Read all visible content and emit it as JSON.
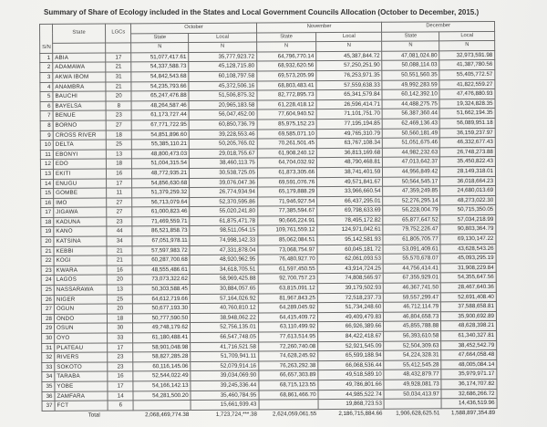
{
  "title": "Summary of Share of Ecology included in the States and Local Government Councils Allocation (October to December, 2015.)",
  "headers": {
    "sn": "S/N",
    "state": "State",
    "lgcs": "LGCs",
    "months": [
      "October",
      "November",
      "December"
    ],
    "sub": [
      "State",
      "Local"
    ],
    "currency": "N"
  },
  "rows": [
    [
      "1",
      "ABIA",
      "17",
      "51,077,417.61",
      "35,777,923.72",
      "64,796,770.14",
      "45,387,844.72",
      "47,081,024.80",
      "32,973,591.98"
    ],
    [
      "2",
      "ADAMAWA",
      "21",
      "54,337,588.73",
      "45,128,715.80",
      "68,932,620.56",
      "57,250,251.90",
      "50,088,114.03",
      "41,387,780.56"
    ],
    [
      "3",
      "AKWA IBOM",
      "31",
      "54,842,543.68",
      "60,108,797.58",
      "69,573,205.99",
      "76,253,971.35",
      "50,551,560.35",
      "55,405,772.57"
    ],
    [
      "4",
      "ANAMBRA",
      "21",
      "54,235,793.66",
      "45,372,506.16",
      "68,803,483.41",
      "57,559,638.33",
      "49,992,283.59",
      "41,822,559.27"
    ],
    [
      "5",
      "BAUCHI",
      "20",
      "65,247,476.88",
      "51,506,875.32",
      "82,772,895.73",
      "65,341,579.84",
      "60,142,392.10",
      "47,476,880.93"
    ],
    [
      "6",
      "BAYELSA",
      "8",
      "48,264,587.46",
      "20,965,183.58",
      "61,228,418.12",
      "26,596,414.71",
      "44,488,275.75",
      "19,324,828.35"
    ],
    [
      "7",
      "BENUE",
      "23",
      "61,173,727.44",
      "56,047,452.00",
      "77,604,940.52",
      "71,101,751.70",
      "56,387,360.44",
      "51,662,194.35"
    ],
    [
      "8",
      "BORNO",
      "27",
      "67,771,722.95",
      "60,850,736.79",
      "85,975,152.23",
      "77,195,194.85",
      "62,469,136.43",
      "56,089,951.18"
    ],
    [
      "9",
      "CROSS RIVER",
      "18",
      "54,851,896.60",
      "39,228,553.46",
      "69,585,071.10",
      "49,765,310.79",
      "50,560,181.49",
      "36,159,237.97"
    ],
    [
      "10",
      "DELTA",
      "25",
      "55,385,110.21",
      "50,205,765.02",
      "70,261,501.45",
      "63,767,108.34",
      "51,051,675.46",
      "46,332,677.43"
    ],
    [
      "11",
      "EBONYI",
      "13",
      "48,800,473.03",
      "29,018,755.67",
      "61,908,240.12",
      "36,813,169.68",
      "44,982,232.63",
      "26,748,273.88"
    ],
    [
      "12",
      "EDO",
      "18",
      "51,004,315.54",
      "38,460,113.75",
      "64,704,032.92",
      "48,790,468.81",
      "47,013,642.37",
      "35,450,822.43"
    ],
    [
      "13",
      "EKITI",
      "16",
      "48,772,935.21",
      "30,538,725.05",
      "61,873,305.66",
      "38,741,401.59",
      "44,956,849.42",
      "28,149,318.01"
    ],
    [
      "14",
      "ENUGU",
      "17",
      "54,856,630.68",
      "39,076,047.36",
      "69,591,076.76",
      "49,571,841.67",
      "50,564,545.17",
      "36,018,664.23"
    ],
    [
      "15",
      "GOMBE",
      "11",
      "51,379,259.32",
      "26,774,934.94",
      "65,179,888.29",
      "33,966,660.54",
      "47,359,249.85",
      "24,680,013.69"
    ],
    [
      "16",
      "IMO",
      "27",
      "56,713,079.64",
      "52,370,595.86",
      "71,946,927.54",
      "66,437,295.01",
      "52,276,295.14",
      "48,273,022.30"
    ],
    [
      "17",
      "JIGAWA",
      "27",
      "61,000,823.46",
      "55,020,241.80",
      "77,385,594.67",
      "69,798,633.69",
      "56,228,004.79",
      "50,715,350.05"
    ],
    [
      "18",
      "KADUNA",
      "23",
      "71,469,559.71",
      "61,875,471.78",
      "90,666,224.91",
      "78,495,172.82",
      "65,877,647.52",
      "57,034,218.99"
    ],
    [
      "19",
      "KANO",
      "44",
      "86,521,858.73",
      "98,511,054.15",
      "109,761,559.12",
      "124,971,042.61",
      "79,752,226.47",
      "90,803,364.79"
    ],
    [
      "20",
      "KATSINA",
      "34",
      "67,051,978.11",
      "74,998,142.33",
      "85,062,084.51",
      "95,142,581.93",
      "61,805,705.77",
      "69,130,147.22"
    ],
    [
      "21",
      "KEBBI",
      "21",
      "57,597,983.72",
      "47,331,878.04",
      "73,068,754.97",
      "60,045,181.72",
      "53,091,409.61",
      "43,628,543.26"
    ],
    [
      "22",
      "KOGI",
      "21",
      "60,287,700.68",
      "48,920,962.95",
      "76,480,927.70",
      "62,061,093.53",
      "55,570,678.07",
      "45,093,295.19"
    ],
    [
      "23",
      "KWARA",
      "16",
      "48,555,486.61",
      "34,618,705.51",
      "61,597,450.55",
      "43,914,724.25",
      "44,756,414.41",
      "31,908,229.84"
    ],
    [
      "24",
      "LAGOS",
      "20",
      "73,073,322.62",
      "58,969,425.88",
      "92,700,757.23",
      "74,808,565.97",
      "67,355,929.01",
      "54,355,647.56"
    ],
    [
      "25",
      "NASSARAWA",
      "13",
      "50,303,588.45",
      "30,884,057.65",
      "63,815,091.12",
      "39,179,502.93",
      "46,367,741.50",
      "28,467,640.36"
    ],
    [
      "26",
      "NIGER",
      "25",
      "64,612,719.66",
      "57,164,026.92",
      "81,967,843.25",
      "72,518,237.73",
      "59,557,299.47",
      "52,691,408.40"
    ],
    [
      "27",
      "OGUN",
      "20",
      "50,677,193.30",
      "40,760,810.12",
      "64,289,045.92",
      "51,734,248.60",
      "46,712,114.79",
      "37,588,658.81"
    ],
    [
      "28",
      "ONDO",
      "18",
      "50,777,590.50",
      "38,948,062.22",
      "64,415,409.72",
      "49,409,479.83",
      "46,804,658.73",
      "35,900,692.89"
    ],
    [
      "29",
      "OSUN",
      "30",
      "49,748,179.62",
      "52,756,135.01",
      "63,110,499.92",
      "66,926,389.66",
      "45,855,788.88",
      "48,628,398.21"
    ],
    [
      "30",
      "OYO",
      "33",
      "61,180,488.41",
      "66,547,748.05",
      "77,613,514.95",
      "84,422,418.67",
      "56,393,610.58",
      "61,340,327.81"
    ],
    [
      "31",
      "PLATEAU",
      "17",
      "58,901,048.98",
      "41,716,521.58",
      "72,260,740.08",
      "52,921,545.09",
      "52,504,309.63",
      "38,452,542.79"
    ],
    [
      "32",
      "RIVERS",
      "23",
      "58,827,285.28",
      "51,709,941.11",
      "74,628,245.92",
      "65,599,188.94",
      "54,224,328.31",
      "47,664,058.48"
    ],
    [
      "33",
      "SOKOTO",
      "23",
      "60,116,145.06",
      "52,079,914.16",
      "76,263,292.38",
      "66,068,536.44",
      "55,412,545.28",
      "48,005,084.14"
    ],
    [
      "34",
      "TARABA",
      "16",
      "52,544,022.49",
      "39,034,069.90",
      "66,657,303.89",
      "49,518,589.10",
      "48,432,879.77",
      "35,979,971.17"
    ],
    [
      "35",
      "YOBE",
      "17",
      "54,166,142.13",
      "39,245,336.44",
      "68,715,123.55",
      "49,786,801.66",
      "49,928,081.73",
      "36,174,707.82"
    ],
    [
      "36",
      "ZAMFARA",
      "14",
      "54,281,500.20",
      "35,460,784.95",
      "68,861,466.70",
      "44,985,522.74",
      "50,034,413.97",
      "32,686,266.72"
    ],
    [
      "37",
      "FCT",
      "6",
      "",
      "15,661,939.43",
      "",
      "19,868,723.53",
      "",
      "14,436,519.96"
    ]
  ],
  "total": {
    "label": "Total",
    "values": [
      "2,068,469,774.38",
      "1,723,724,***.38",
      "2,624,059,061.55",
      "2,186,715,884.66",
      "1,906,628,625.51",
      "1,588,897,354.89"
    ]
  }
}
